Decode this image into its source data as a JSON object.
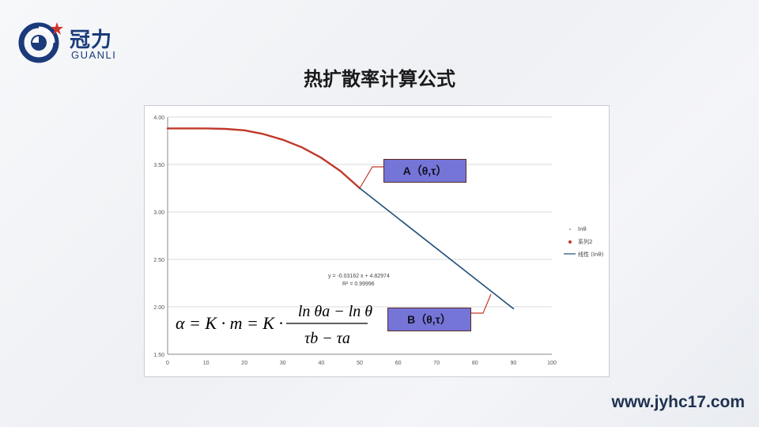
{
  "logo": {
    "name_cn": "冠力",
    "name_en": "GUANLI"
  },
  "slide": {
    "title": "热扩散率计算公式"
  },
  "callouts": {
    "a_label": "A（θ,τ）",
    "b_label": "B（θ,τ）"
  },
  "formula": {
    "lhs": "α = K · m = K ·",
    "numerator": "ln θa − ln θb",
    "denominator": "τb − τa"
  },
  "footer": {
    "url": "www.jyhc17.com"
  },
  "chart_data": {
    "type": "line",
    "xlim": [
      0,
      100
    ],
    "ylim": [
      1.5,
      4.0
    ],
    "x_ticks": [
      "0",
      "10",
      "20",
      "30",
      "40",
      "50",
      "60",
      "70",
      "80",
      "90",
      "100"
    ],
    "y_ticks": [
      "4.00",
      "3.50",
      "3.00",
      "2.50",
      "2.00",
      "1.50"
    ],
    "grid": "horizontal",
    "legend_position": "right",
    "legend": [
      "lnθ",
      "系列2",
      "线性 (lnθ)"
    ],
    "trendline_equation": "y = -0.03162 x + 4.82974",
    "trendline_r2": "R² = 0.99996",
    "series": [
      {
        "name": "系列2",
        "color": "#c0392b",
        "x": [
          0,
          5,
          10,
          15,
          20,
          25,
          30,
          35,
          40,
          45,
          50
        ],
        "y": [
          3.88,
          3.88,
          3.88,
          3.875,
          3.86,
          3.82,
          3.76,
          3.68,
          3.57,
          3.43,
          3.25
        ]
      },
      {
        "name": "线性 (lnθ)",
        "color": "#1f4e79",
        "x": [
          50,
          90
        ],
        "y": [
          3.25,
          1.98
        ]
      }
    ]
  }
}
